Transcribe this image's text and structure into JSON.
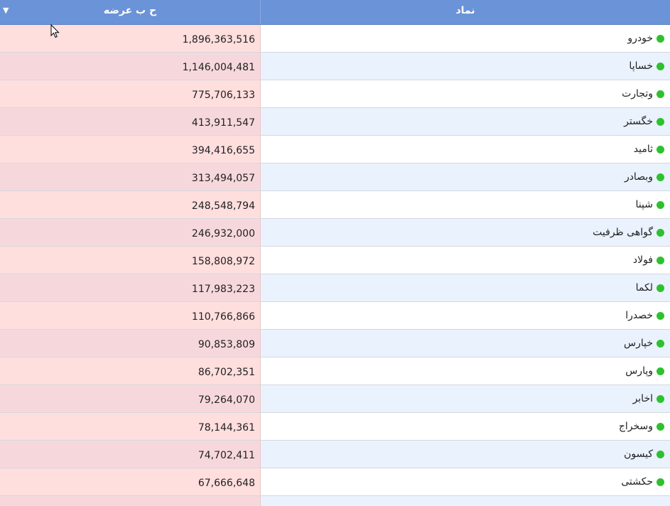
{
  "header": {
    "volume_label": "ح ب عرضه",
    "symbol_label": "نماد",
    "sort_icon": "▼"
  },
  "colors": {
    "header_bg": "#6b93d8",
    "volume_bg": "#ffdede",
    "volume_bg_alt": "#f6d8dc",
    "symbol_bg": "#ffffff",
    "symbol_bg_alt": "#eaf2fe",
    "status_dot": "#2dc22d"
  },
  "rows": [
    {
      "symbol": "خودرو",
      "volume": "1,896,363,516"
    },
    {
      "symbol": "خساپا",
      "volume": "1,146,004,481"
    },
    {
      "symbol": "وتجارت",
      "volume": "775,706,133"
    },
    {
      "symbol": "خگستر",
      "volume": "413,911,547"
    },
    {
      "symbol": "ثامید",
      "volume": "394,416,655"
    },
    {
      "symbol": "وبصادر",
      "volume": "313,494,057"
    },
    {
      "symbol": "شپنا",
      "volume": "248,548,794"
    },
    {
      "symbol": "گواهی ظرفیت",
      "volume": "246,932,000"
    },
    {
      "symbol": "فولاد",
      "volume": "158,808,972"
    },
    {
      "symbol": "لکما",
      "volume": "117,983,223"
    },
    {
      "symbol": "خصدرا",
      "volume": "110,766,866"
    },
    {
      "symbol": "خپارس",
      "volume": "90,853,809"
    },
    {
      "symbol": "وپارس",
      "volume": "86,702,351"
    },
    {
      "symbol": "اخابر",
      "volume": "79,264,070"
    },
    {
      "symbol": "وسخراج",
      "volume": "78,144,361"
    },
    {
      "symbol": "کیسون",
      "volume": "74,702,411"
    },
    {
      "symbol": "حکشتی",
      "volume": "67,666,648"
    },
    {
      "symbol": "",
      "volume": ""
    }
  ]
}
